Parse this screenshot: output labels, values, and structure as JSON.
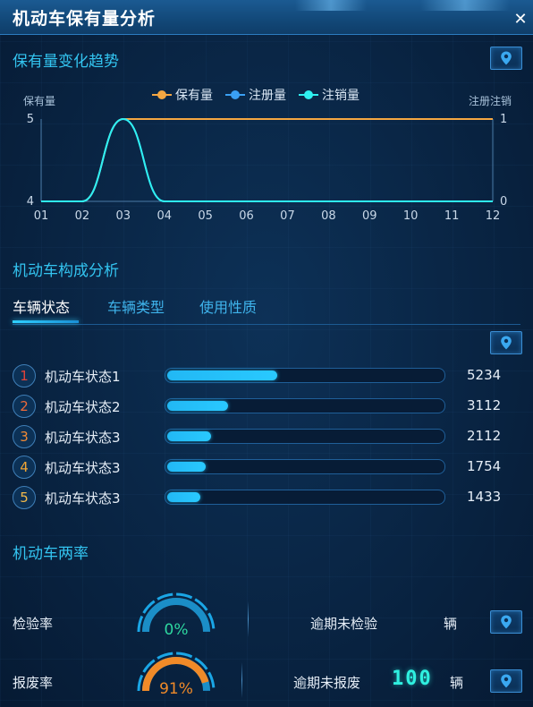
{
  "window": {
    "title": "机动车保有量分析",
    "close_icon": "close-icon"
  },
  "trend": {
    "section_title": "保有量变化趋势",
    "chart_data": {
      "type": "line",
      "x": [
        "01",
        "02",
        "03",
        "04",
        "05",
        "06",
        "07",
        "08",
        "09",
        "10",
        "11",
        "12"
      ],
      "left_axis": {
        "label": "保有量",
        "ticks": [
          "5",
          "4"
        ],
        "ylim": [
          4,
          5
        ]
      },
      "right_axis": {
        "label": "注册注销",
        "ticks": [
          "1",
          "0"
        ],
        "ylim": [
          0,
          1
        ]
      },
      "series": [
        {
          "name": "保有量",
          "axis": "left",
          "color": "#f5a742",
          "values": [
            4,
            4,
            5,
            5,
            5,
            5,
            5,
            5,
            5,
            5,
            5,
            5
          ]
        },
        {
          "name": "注册量",
          "axis": "right",
          "color": "#3aa0f4",
          "values": [
            0,
            0,
            1,
            0,
            0,
            0,
            0,
            0,
            0,
            0,
            0,
            0
          ]
        },
        {
          "name": "注销量",
          "axis": "right",
          "color": "#2ff0f0",
          "values": [
            0,
            0,
            1,
            0,
            0,
            0,
            0,
            0,
            0,
            0,
            0,
            0
          ]
        }
      ],
      "grid": false,
      "legend_position": "top-center"
    }
  },
  "composition": {
    "section_title": "机动车构成分析",
    "tabs": [
      {
        "label": "车辆状态",
        "active": true
      },
      {
        "label": "车辆类型",
        "active": false
      },
      {
        "label": "使用性质",
        "active": false
      }
    ],
    "ranking": [
      {
        "rank": "1",
        "label": "机动车状态1",
        "value": "5234",
        "fraction": 0.4,
        "rank_color": "#e0433a"
      },
      {
        "rank": "2",
        "label": "机动车状态2",
        "value": "3112",
        "fraction": 0.22,
        "rank_color": "#ee6a3a"
      },
      {
        "rank": "3",
        "label": "机动车状态3",
        "value": "2112",
        "fraction": 0.16,
        "rank_color": "#f08a35"
      },
      {
        "rank": "4",
        "label": "机动车状态3",
        "value": "1754",
        "fraction": 0.14,
        "rank_color": "#f0a535"
      },
      {
        "rank": "5",
        "label": "机动车状态3",
        "value": "1433",
        "fraction": 0.12,
        "rank_color": "#f0b84a"
      }
    ]
  },
  "rates": {
    "section_title": "机动车两率",
    "items": [
      {
        "label": "检验率",
        "gauge_text": "0%",
        "fraction": 0.0,
        "gauge_color": "#2ed8a0",
        "stat_label": "逾期未检验",
        "stat_value": "",
        "unit": "辆"
      },
      {
        "label": "报废率",
        "gauge_text": "91%",
        "fraction": 0.91,
        "gauge_color": "#f08a28",
        "stat_label": "逾期未报废",
        "stat_value": "100",
        "unit": "辆"
      }
    ]
  },
  "icons": {
    "locate": "map-pin-icon"
  },
  "colors": {
    "accent": "#33c4f0",
    "panel_bg": "#0a2545"
  }
}
